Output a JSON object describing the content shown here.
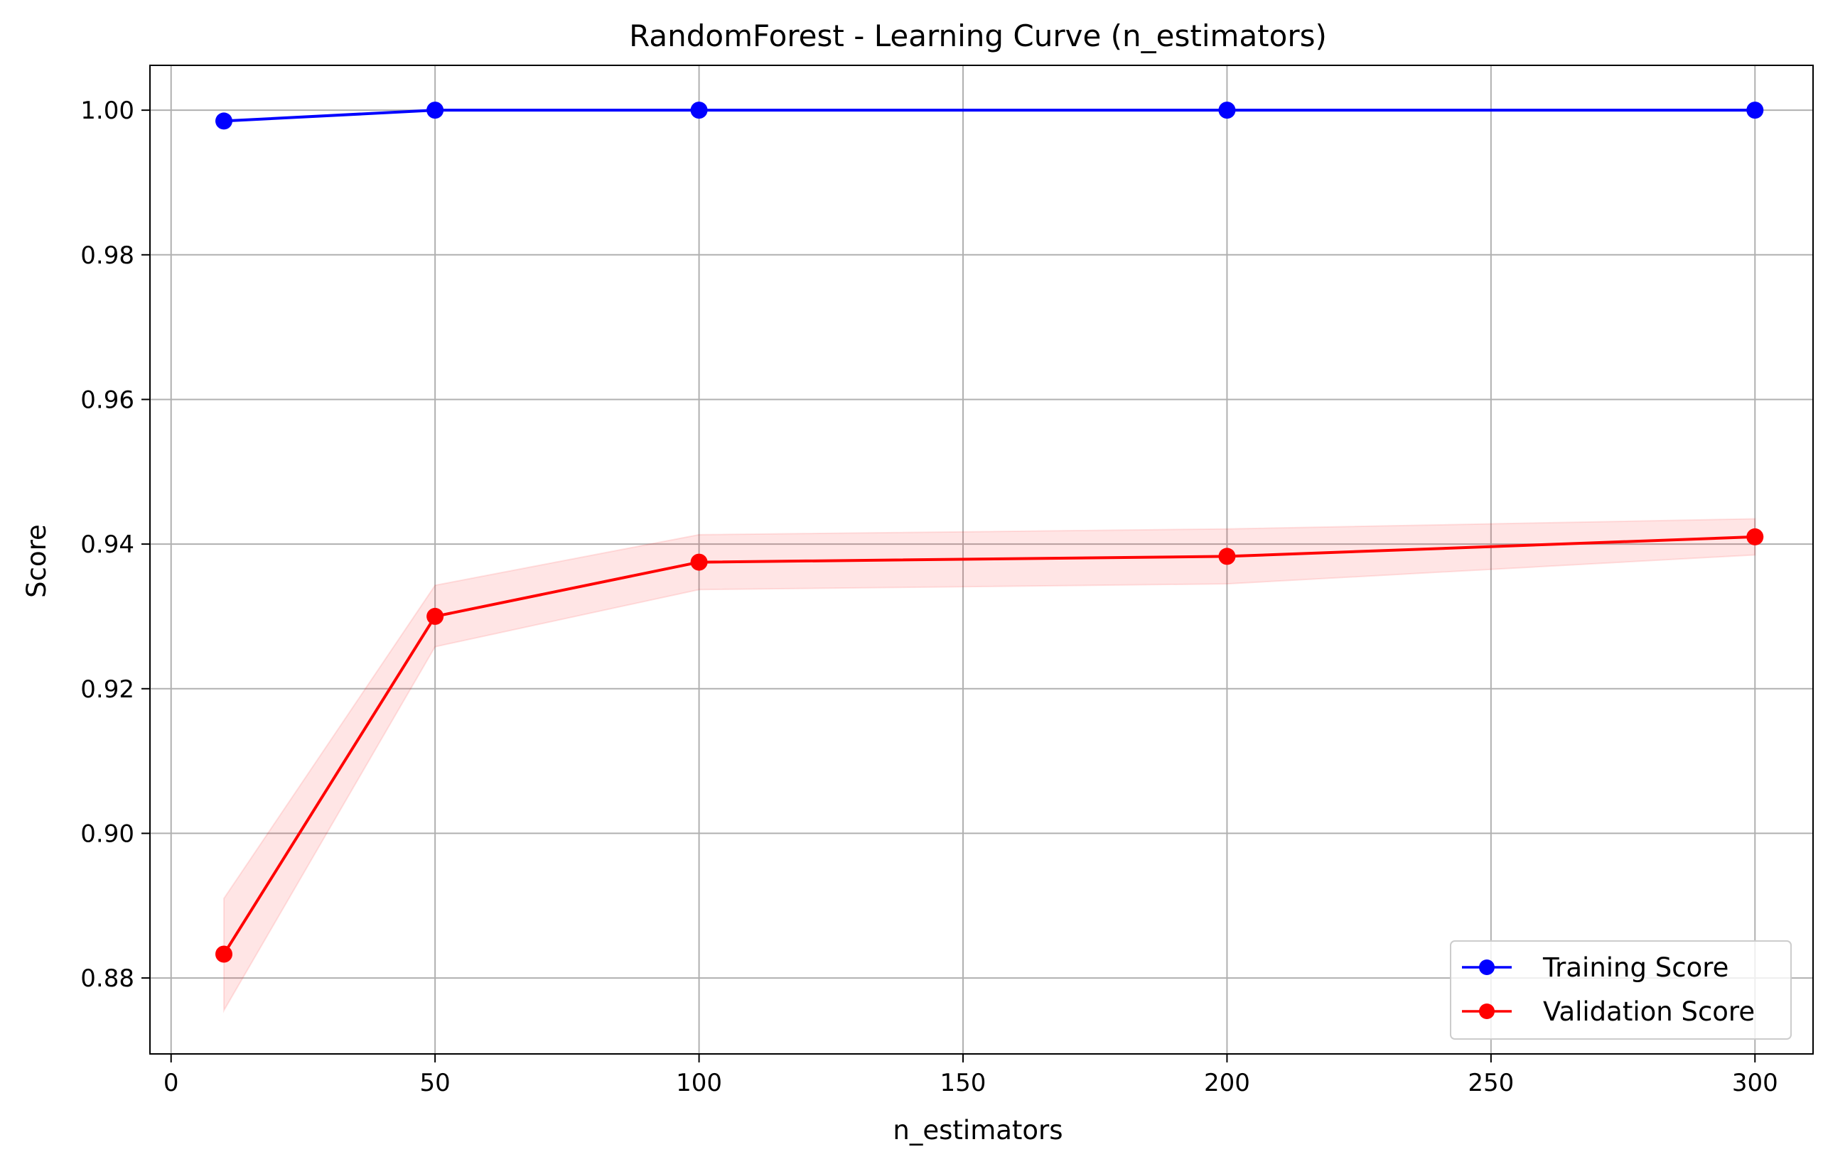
{
  "chart_data": {
    "type": "line",
    "title": "RandomForest - Learning Curve (n_estimators)",
    "xlabel": "n_estimators",
    "ylabel": "Score",
    "xlim": [
      -4,
      311
    ],
    "ylim": [
      0.8695,
      1.0062
    ],
    "xticks": [
      0,
      50,
      100,
      150,
      200,
      250,
      300
    ],
    "yticks": [
      0.88,
      0.9,
      0.92,
      0.94,
      0.96,
      0.98,
      1.0
    ],
    "grid": true,
    "legend_position": "lower-right",
    "x": [
      10,
      50,
      100,
      200,
      300
    ],
    "series": [
      {
        "name": "Training Score",
        "color": "#0000ff",
        "values": [
          0.9985,
          1.0,
          1.0,
          1.0,
          1.0
        ],
        "band": [
          [
            0.9985,
            0.9985
          ],
          [
            1.0,
            1.0
          ],
          [
            1.0,
            1.0
          ],
          [
            1.0,
            1.0
          ],
          [
            1.0,
            1.0
          ]
        ]
      },
      {
        "name": "Validation Score",
        "color": "#ff0000",
        "band_color": "#ff0000",
        "values": [
          0.8833,
          0.93,
          0.9375,
          0.9383,
          0.941
        ],
        "band": [
          [
            0.8755,
            0.891
          ],
          [
            0.9258,
            0.9343
          ],
          [
            0.9337,
            0.9413
          ],
          [
            0.9345,
            0.9421
          ],
          [
            0.9385,
            0.9435
          ]
        ]
      }
    ]
  }
}
